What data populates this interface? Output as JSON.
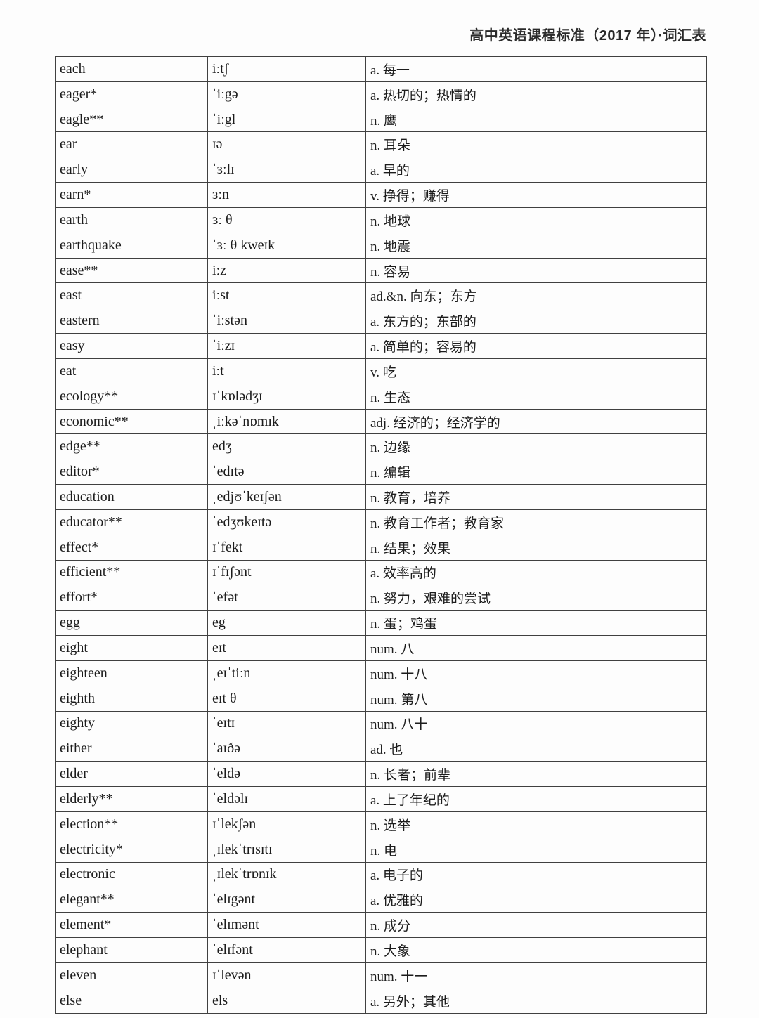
{
  "page": {
    "header_title": "高中英语课程标准（2017 年）·词汇表"
  },
  "table": {
    "columns": [
      "word",
      "ipa",
      "definition"
    ],
    "rows": [
      {
        "word": "each",
        "ipa": "iːtʃ",
        "definition": "a. 每一"
      },
      {
        "word": "eager*",
        "ipa": "ˈiːgə",
        "definition": "a. 热切的；热情的"
      },
      {
        "word": "eagle**",
        "ipa": "ˈiːgl",
        "definition": "n. 鹰"
      },
      {
        "word": "ear",
        "ipa": "ɪə",
        "definition": "n. 耳朵"
      },
      {
        "word": "early",
        "ipa": "ˈɜːlɪ",
        "definition": "a. 早的"
      },
      {
        "word": "earn*",
        "ipa": "ɜːn",
        "definition": "v. 挣得；赚得"
      },
      {
        "word": "earth",
        "ipa": "ɜː θ",
        "definition": "n. 地球"
      },
      {
        "word": "earthquake",
        "ipa": "ˈɜː θ kweɪk",
        "definition": "n. 地震"
      },
      {
        "word": "ease**",
        "ipa": "iːz",
        "definition": "n. 容易"
      },
      {
        "word": "east",
        "ipa": "iːst",
        "definition": "ad.&n. 向东；东方"
      },
      {
        "word": "eastern",
        "ipa": "ˈiːstən",
        "definition": "a. 东方的；东部的"
      },
      {
        "word": "easy",
        "ipa": "ˈiːzɪ",
        "definition": "a. 简单的；容易的"
      },
      {
        "word": "eat",
        "ipa": "iːt",
        "definition": "v. 吃"
      },
      {
        "word": "ecology**",
        "ipa": "ɪˈkɒlədʒɪ",
        "definition": "n. 生态"
      },
      {
        "word": "economic**",
        "ipa": "ˌiːkəˈnɒmɪk",
        "definition": "adj. 经济的；经济学的"
      },
      {
        "word": "edge**",
        "ipa": "edʒ",
        "definition": "n. 边缘"
      },
      {
        "word": "editor*",
        "ipa": "ˈedɪtə",
        "definition": "n. 编辑"
      },
      {
        "word": "education",
        "ipa": "ˌedjʊˈkeɪʃən",
        "definition": "n. 教育，培养"
      },
      {
        "word": "educator**",
        "ipa": "ˈedʒʊkeɪtə",
        "definition": "n. 教育工作者；教育家"
      },
      {
        "word": "effect*",
        "ipa": "ɪˈfekt",
        "definition": "n. 结果；效果"
      },
      {
        "word": "efficient**",
        "ipa": "ɪˈfɪʃənt",
        "definition": "a. 效率高的"
      },
      {
        "word": "effort*",
        "ipa": "ˈefət",
        "definition": "n. 努力，艰难的尝试"
      },
      {
        "word": "egg",
        "ipa": "eg",
        "definition": "n. 蛋；鸡蛋"
      },
      {
        "word": "eight",
        "ipa": "eɪt",
        "definition": "num. 八"
      },
      {
        "word": "eighteen",
        "ipa": "ˌeɪˈtiːn",
        "definition": "num. 十八"
      },
      {
        "word": "eighth",
        "ipa": "eɪt θ",
        "definition": "num. 第八"
      },
      {
        "word": "eighty",
        "ipa": "ˈeɪtɪ",
        "definition": "num. 八十"
      },
      {
        "word": "either",
        "ipa": "ˈaɪðə",
        "definition": "ad. 也"
      },
      {
        "word": "elder",
        "ipa": "ˈeldə",
        "definition": "n. 长者；前辈"
      },
      {
        "word": "elderly**",
        "ipa": "ˈeldəlɪ",
        "definition": "a. 上了年纪的"
      },
      {
        "word": "election**",
        "ipa": "ɪˈlekʃən",
        "definition": "n. 选举"
      },
      {
        "word": "electricity*",
        "ipa": "ˌɪlekˈtrɪsɪtɪ",
        "definition": "n. 电"
      },
      {
        "word": "electronic",
        "ipa": "ˌɪlekˈtrɒnɪk",
        "definition": "a. 电子的"
      },
      {
        "word": "elegant**",
        "ipa": "ˈelɪgənt",
        "definition": "a. 优雅的"
      },
      {
        "word": "element*",
        "ipa": "ˈelɪmənt",
        "definition": "n. 成分"
      },
      {
        "word": "elephant",
        "ipa": "ˈelɪfənt",
        "definition": "n. 大象"
      },
      {
        "word": "eleven",
        "ipa": "ɪˈlevən",
        "definition": "num. 十一"
      },
      {
        "word": "else",
        "ipa": "els",
        "definition": "a. 另外；其他"
      }
    ]
  }
}
